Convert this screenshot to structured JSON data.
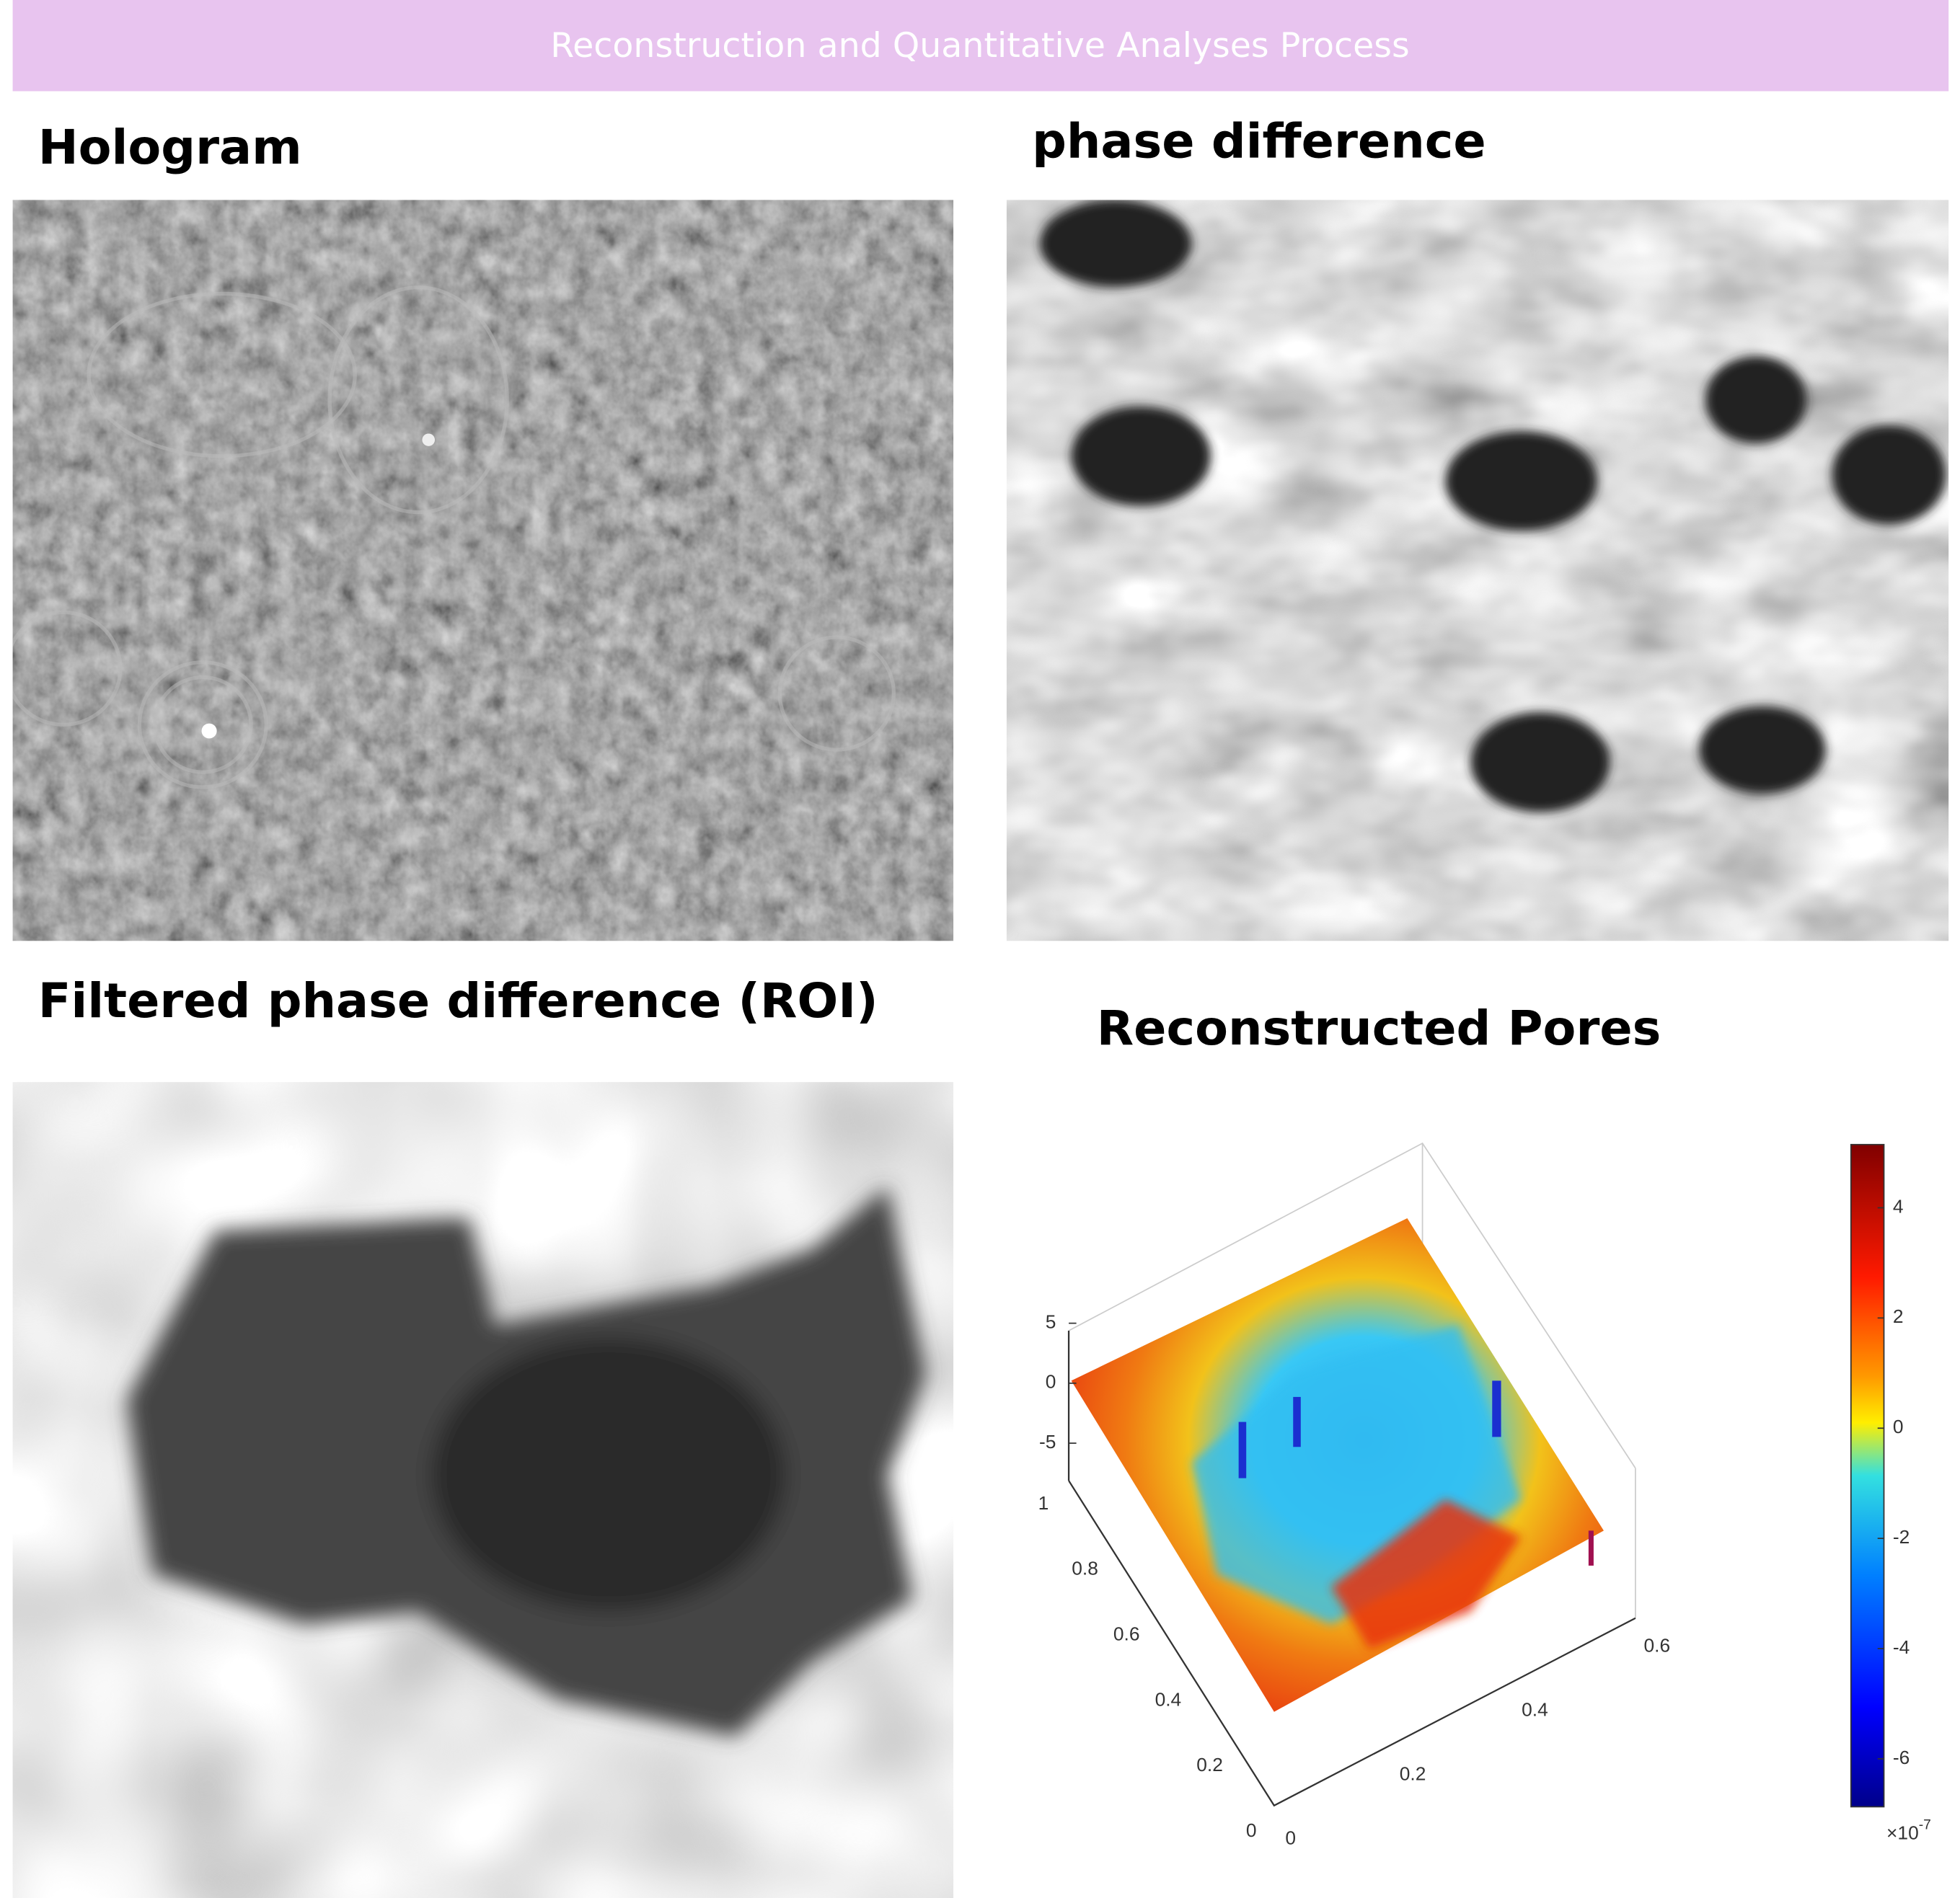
{
  "header": {
    "title": "Reconstruction and Quantitative Analyses Process"
  },
  "panels": [
    {
      "title": "Hologram"
    },
    {
      "title": "phase difference"
    },
    {
      "title": "Filtered phase difference (ROI)"
    },
    {
      "title": "Reconstructed Pores",
      "plot": {
        "z_ticks": [
          5,
          0,
          -5
        ],
        "y_ticks": [
          1,
          0.8,
          0.6,
          0.4,
          0.2,
          0
        ],
        "x_ticks": [
          0,
          0.2,
          0.4,
          0.6
        ],
        "colorbar": {
          "ticks": [
            4,
            2,
            0,
            -2,
            -4,
            -6
          ],
          "scale_label": {
            "base": "×10",
            "exponent": "-7"
          }
        }
      }
    }
  ]
}
